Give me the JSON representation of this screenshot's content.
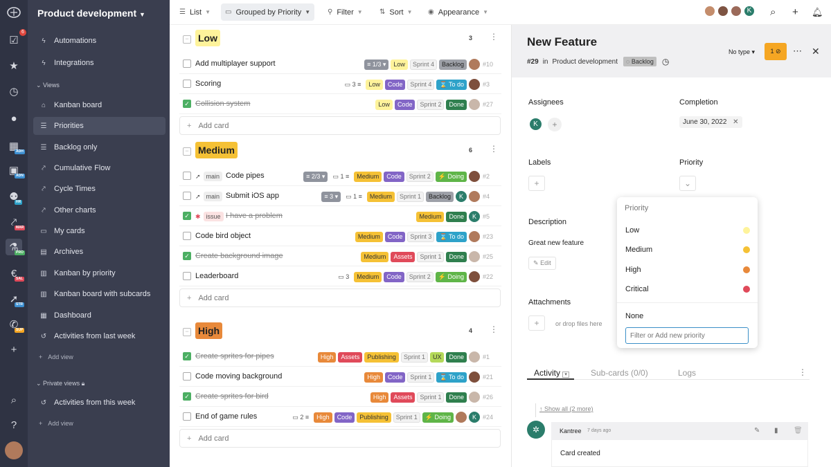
{
  "project_title": "Product development",
  "rail": {
    "badge_count": "6",
    "tags": [
      "ADH",
      "ADN",
      "HR",
      "MAR",
      "PRO",
      "SAL",
      "STR",
      "SUP"
    ]
  },
  "sidebar": {
    "top_items": [
      {
        "label": "Automations",
        "icon": "bolt-icon"
      },
      {
        "label": "Integrations",
        "icon": "plug-icon"
      }
    ],
    "views_section": "Views",
    "views": [
      {
        "label": "Kanban board",
        "icon": "home-icon"
      },
      {
        "label": "Priorities",
        "icon": "list-icon",
        "active": true
      },
      {
        "label": "Backlog only",
        "icon": "list-icon"
      },
      {
        "label": "Cumulative Flow",
        "icon": "chart-icon"
      },
      {
        "label": "Cycle Times",
        "icon": "chart-icon"
      },
      {
        "label": "Other charts",
        "icon": "chart-icon"
      },
      {
        "label": "My cards",
        "icon": "cards-icon"
      },
      {
        "label": "Archives",
        "icon": "archive-icon"
      },
      {
        "label": "Kanban by priority",
        "icon": "board-icon"
      },
      {
        "label": "Kanban board with subcards",
        "icon": "board-icon"
      },
      {
        "label": "Dashboard",
        "icon": "dashboard-icon"
      },
      {
        "label": "Activities from last week",
        "icon": "history-icon"
      }
    ],
    "add_view_label": "Add view",
    "private_section": "Private views",
    "private_views": [
      {
        "label": "Activities from this week",
        "icon": "history-icon"
      }
    ]
  },
  "toolbar": {
    "list_label": "List",
    "grouped_label": "Grouped by Priority",
    "filter_label": "Filter",
    "sort_label": "Sort",
    "appearance_label": "Appearance",
    "k_avatar": "K"
  },
  "add_card_label": "Add card",
  "groups": [
    {
      "name": "Low",
      "count": "3",
      "color": "#fef39b",
      "cards": [
        {
          "title": "Add multiplayer support",
          "done": false,
          "strike": false,
          "pre": [],
          "tags": [
            {
              "t": "≡ 1/3 ▾",
              "c": "t-sub"
            },
            {
              "t": "Low",
              "c": "t-low"
            },
            {
              "t": "Sprint 4",
              "c": "t-sprint"
            },
            {
              "t": "Backlog",
              "c": "t-backlog"
            }
          ],
          "avatars": [
            "p1"
          ],
          "id": "#10"
        },
        {
          "title": "Scoring",
          "done": false,
          "strike": false,
          "hourglass": true,
          "pre": [],
          "tags": [
            {
              "t": "▭ 3 ≡",
              "c": "plain"
            },
            {
              "t": "Low",
              "c": "t-low"
            },
            {
              "t": "Code",
              "c": "t-code"
            },
            {
              "t": "Sprint 4",
              "c": "t-sprint"
            },
            {
              "t": "⌛ To do",
              "c": "t-todo"
            }
          ],
          "avatars": [
            "p2"
          ],
          "id": "#3"
        },
        {
          "title": "Collision system",
          "done": true,
          "strike": true,
          "pre": [],
          "tags": [
            {
              "t": "Low",
              "c": "t-low"
            },
            {
              "t": "Code",
              "c": "t-code"
            },
            {
              "t": "Sprint 2",
              "c": "t-sprint"
            },
            {
              "t": "Done",
              "c": "t-done"
            }
          ],
          "avatars": [
            "p3"
          ],
          "id": "#27"
        }
      ]
    },
    {
      "name": "Medium",
      "count": "6",
      "color": "#f5c135",
      "cards": [
        {
          "title": "Code pipes",
          "done": false,
          "strike": false,
          "prefix_icon": "rocket-icon",
          "prefix_label": "main",
          "tags": [
            {
              "t": "≡ 2/3 ▾",
              "c": "t-sub"
            },
            {
              "t": "▭ 1 ≡",
              "c": "plain"
            },
            {
              "t": "Medium",
              "c": "t-med"
            },
            {
              "t": "Code",
              "c": "t-code"
            },
            {
              "t": "Sprint 2",
              "c": "t-sprint"
            },
            {
              "t": "⚡ Doing",
              "c": "t-doing"
            }
          ],
          "avatars": [
            "p2"
          ],
          "id": "#2"
        },
        {
          "title": "Submit iOS app",
          "done": false,
          "strike": false,
          "prefix_icon": "rocket-icon",
          "prefix_label": "main",
          "tags": [
            {
              "t": "≡ 3 ▾",
              "c": "t-sub"
            },
            {
              "t": "▭ 1 ≡",
              "c": "plain"
            },
            {
              "t": "Medium",
              "c": "t-med"
            },
            {
              "t": "Sprint 1",
              "c": "t-sprint"
            },
            {
              "t": "Backlog",
              "c": "t-backlog"
            }
          ],
          "avatars": [
            "k",
            "p1"
          ],
          "id": "#4"
        },
        {
          "title": "I have a problem",
          "done": true,
          "strike": true,
          "prefix_icon": "bug-icon",
          "prefix_label": "issue",
          "tags": [
            {
              "t": "Medium",
              "c": "t-med"
            },
            {
              "t": "Done",
              "c": "t-done"
            }
          ],
          "avatars": [
            "k"
          ],
          "id": "#5"
        },
        {
          "title": "Code bird object",
          "done": false,
          "strike": false,
          "hourglass": true,
          "tags": [
            {
              "t": "Medium",
              "c": "t-med"
            },
            {
              "t": "Code",
              "c": "t-code"
            },
            {
              "t": "Sprint 3",
              "c": "t-sprint"
            },
            {
              "t": "⌛ To do",
              "c": "t-todo"
            }
          ],
          "avatars": [
            "p1"
          ],
          "id": "#23"
        },
        {
          "title": "Create background image",
          "done": true,
          "strike": true,
          "tags": [
            {
              "t": "Medium",
              "c": "t-med"
            },
            {
              "t": "Assets",
              "c": "t-assets"
            },
            {
              "t": "Sprint 1",
              "c": "t-sprint"
            },
            {
              "t": "Done",
              "c": "t-done"
            }
          ],
          "avatars": [
            "p3"
          ],
          "id": "#25"
        },
        {
          "title": "Leaderboard",
          "done": false,
          "strike": false,
          "bolt": true,
          "tags": [
            {
              "t": "▭ 3",
              "c": "plain"
            },
            {
              "t": "Medium",
              "c": "t-med"
            },
            {
              "t": "Code",
              "c": "t-code"
            },
            {
              "t": "Sprint 2",
              "c": "t-sprint"
            },
            {
              "t": "⚡ Doing",
              "c": "t-doing"
            }
          ],
          "avatars": [
            "p2"
          ],
          "id": "#22"
        }
      ]
    },
    {
      "name": "High",
      "count": "4",
      "color": "#e8893a",
      "cards": [
        {
          "title": "Create sprites for pipes",
          "done": true,
          "strike": true,
          "tags": [
            {
              "t": "High",
              "c": "t-high"
            },
            {
              "t": "Assets",
              "c": "t-assets"
            },
            {
              "t": "Publishing",
              "c": "t-pub"
            },
            {
              "t": "Sprint 1",
              "c": "t-sprint"
            },
            {
              "t": "UX",
              "c": "t-ux"
            },
            {
              "t": "Done",
              "c": "t-done"
            }
          ],
          "avatars": [
            "p3"
          ],
          "id": "#1"
        },
        {
          "title": "Code moving background",
          "done": false,
          "strike": false,
          "hourglass": true,
          "tags": [
            {
              "t": "High",
              "c": "t-high"
            },
            {
              "t": "Code",
              "c": "t-code"
            },
            {
              "t": "Sprint 1",
              "c": "t-sprint"
            },
            {
              "t": "⌛ To do",
              "c": "t-todo"
            }
          ],
          "avatars": [
            "p2"
          ],
          "id": "#21"
        },
        {
          "title": "Create sprites for bird",
          "done": true,
          "strike": true,
          "tags": [
            {
              "t": "High",
              "c": "t-high"
            },
            {
              "t": "Assets",
              "c": "t-assets"
            },
            {
              "t": "Sprint 1",
              "c": "t-sprint"
            },
            {
              "t": "Done",
              "c": "t-done"
            }
          ],
          "avatars": [
            "p3"
          ],
          "id": "#26"
        },
        {
          "title": "End of game rules",
          "done": false,
          "strike": false,
          "bolt": true,
          "tags": [
            {
              "t": "▭ 2 ≡",
              "c": "plain"
            },
            {
              "t": "High",
              "c": "t-high"
            },
            {
              "t": "Code",
              "c": "t-code"
            },
            {
              "t": "Publishing",
              "c": "t-pub"
            },
            {
              "t": "Sprint 1",
              "c": "t-sprint"
            },
            {
              "t": "⚡ Doing",
              "c": "t-doing"
            }
          ],
          "avatars": [
            "p1",
            "k"
          ],
          "id": "#24"
        }
      ]
    }
  ],
  "detail": {
    "title": "New Feature",
    "id": "#29",
    "in_label": "in",
    "project": "Product development",
    "column": "Backlog",
    "type_label": "No type",
    "badge": "1",
    "assignees_label": "Assignees",
    "assignee_initial": "K",
    "completion_label": "Completion",
    "completion_date": "June 30, 2022",
    "labels_label": "Labels",
    "priority_label": "Priority",
    "description_label": "Description",
    "description_text": "Great new feature",
    "edit_label": "Edit",
    "attachments_label": "Attachments",
    "drop_label": "or drop files here",
    "tabs": {
      "activity": "Activity",
      "subcards": "Sub-cards (0/0)",
      "logs": "Logs"
    },
    "show_all": "Show all (2 more)",
    "comment_author": "Kantree",
    "comment_time": "7 days ago",
    "comment_text": "Card created"
  },
  "priority_popup": {
    "title": "Priority",
    "options": [
      {
        "label": "Low",
        "color": "#fef39b"
      },
      {
        "label": "Medium",
        "color": "#f5c135"
      },
      {
        "label": "High",
        "color": "#e8893a"
      },
      {
        "label": "Critical",
        "color": "#e04a5a"
      }
    ],
    "none_label": "None",
    "input_placeholder": "Filter or Add new priority"
  }
}
